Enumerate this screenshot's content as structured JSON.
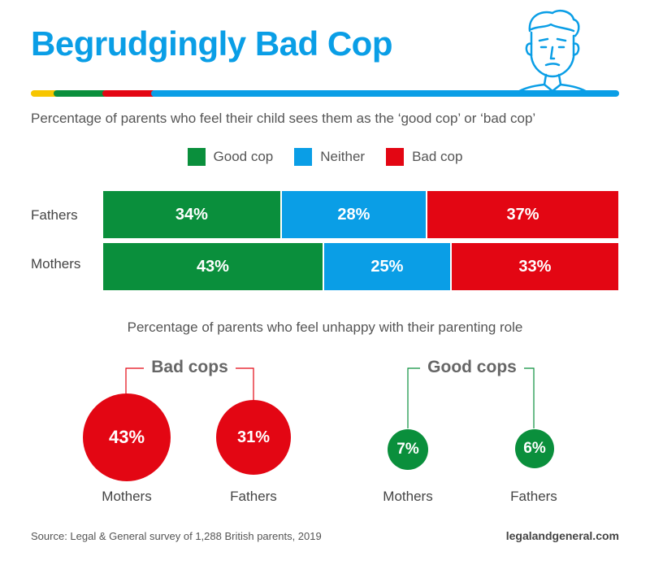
{
  "title": "Begrudgingly Bad Cop",
  "colors": {
    "good": "#0a8f3c",
    "neither": "#0a9ee6",
    "bad": "#e30613",
    "yellow": "#f7c600"
  },
  "chart_data": [
    {
      "type": "bar",
      "orientation": "horizontal-stacked",
      "title": "Percentage of parents who feel their child sees them as the ‘good cop’ or ‘bad cop’",
      "categories": [
        "Fathers",
        "Mothers"
      ],
      "series": [
        {
          "name": "Good cop",
          "values": [
            34,
            43
          ],
          "labels": [
            "34%",
            "43%"
          ]
        },
        {
          "name": "Neither",
          "values": [
            28,
            25
          ],
          "labels": [
            "28%",
            "25%"
          ]
        },
        {
          "name": "Bad cop",
          "values": [
            37,
            33
          ],
          "labels": [
            "37%",
            "33%"
          ]
        }
      ],
      "legend": "top-center"
    },
    {
      "type": "bubble",
      "title": "Percentage of parents who feel unhappy with their parenting role",
      "groups": [
        {
          "name": "Bad cops",
          "categories": [
            "Mothers",
            "Fathers"
          ],
          "values": [
            43,
            31
          ],
          "labels": [
            "43%",
            "31%"
          ]
        },
        {
          "name": "Good cops",
          "categories": [
            "Mothers",
            "Fathers"
          ],
          "values": [
            7,
            6
          ],
          "labels": [
            "7%",
            "6%"
          ]
        }
      ]
    }
  ],
  "footer": {
    "source": "Source: Legal & General survey of 1,288 British parents, 2019",
    "site": "legalandgeneral.com"
  },
  "icons": {
    "avatar": "man-face-icon"
  }
}
